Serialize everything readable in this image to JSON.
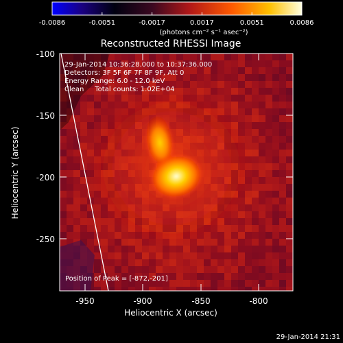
{
  "colorbar": {
    "ticks": [
      "-0.0086",
      "-0.0051",
      "-0.0017",
      "0.0017",
      "0.0051",
      "0.0086"
    ],
    "unit_label": "(photons cm⁻² s⁻¹ asec⁻²)"
  },
  "plot": {
    "title": "Reconstructed RHESSI Image",
    "xlabel": "Heliocentric X (arcsec)",
    "ylabel": "Heliocentric Y (arcsec)",
    "xticks": [
      "-950",
      "-900",
      "-850",
      "-800"
    ],
    "yticks": [
      "-100",
      "-150",
      "-200",
      "-250"
    ],
    "info_lines": [
      "29-Jan-2014 10:36:28.000 to 10:37:36.000",
      "Detectors: 3F 5F 6F 7F 8F 9F, Att 0",
      "Energy Range: 6.0 - 12.0 keV",
      "Clean     Total counts: 1.02E+04"
    ],
    "peak_text": "Position of Peak = [-872,-201]"
  },
  "footer": {
    "timestamp": "29-Jan-2014 21:31"
  }
}
